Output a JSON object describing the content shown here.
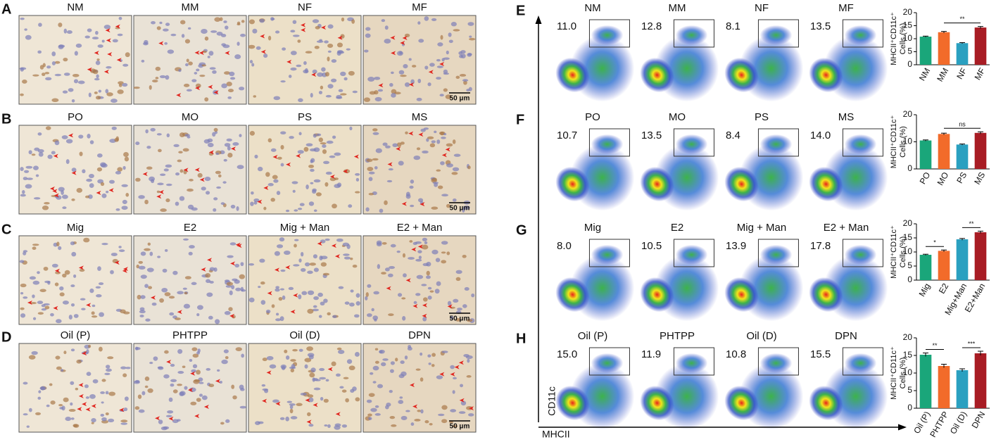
{
  "left_panels": [
    {
      "letter": "A",
      "labels": [
        "NM",
        "MM",
        "NF",
        "MF"
      ],
      "scale": "50 μm"
    },
    {
      "letter": "B",
      "labels": [
        "PO",
        "MO",
        "PS",
        "MS"
      ],
      "scale": "50 μm"
    },
    {
      "letter": "C",
      "labels": [
        "Mig",
        "E2",
        "Mig + Man",
        "E2 + Man"
      ],
      "scale": "50 μm"
    },
    {
      "letter": "D",
      "labels": [
        "Oil (P)",
        "PHTPP",
        "Oil (D)",
        "DPN"
      ],
      "scale": "50 μm"
    }
  ],
  "flow_panels": [
    {
      "letter": "E",
      "labels": [
        "NM",
        "MM",
        "NF",
        "MF"
      ],
      "gates": [
        "11.0",
        "12.8",
        "8.1",
        "13.5"
      ]
    },
    {
      "letter": "F",
      "labels": [
        "PO",
        "MO",
        "PS",
        "MS"
      ],
      "gates": [
        "10.7",
        "13.5",
        "8.4",
        "14.0"
      ]
    },
    {
      "letter": "G",
      "labels": [
        "Mig",
        "E2",
        "Mig + Man",
        "E2 + Man"
      ],
      "gates": [
        "8.0",
        "10.5",
        "13.9",
        "17.8"
      ]
    },
    {
      "letter": "H",
      "labels": [
        "Oil (P)",
        "PHTPP",
        "Oil (D)",
        "DPN"
      ],
      "gates": [
        "15.0",
        "11.9",
        "10.8",
        "15.5"
      ]
    }
  ],
  "flow_axes": {
    "y_label": "CD11c",
    "x_label": "MHCII"
  },
  "chart_data": [
    {
      "type": "bar",
      "y_label": [
        "MHCII⁺CD11c⁺",
        "Cells (%)"
      ],
      "categories": [
        "NM",
        "MM",
        "NF",
        "MF"
      ],
      "values": [
        10.8,
        12.5,
        8.3,
        14.3
      ],
      "errors": [
        0.2,
        0.3,
        0.2,
        0.4
      ],
      "colors": [
        "#1aa67a",
        "#f26b2a",
        "#2aa0c0",
        "#a81c24"
      ],
      "ylim": [
        0,
        20
      ],
      "yticks": [
        0,
        5,
        10,
        15,
        20
      ],
      "significance": [
        {
          "between": [
            "MM",
            "MF"
          ],
          "label": "**"
        }
      ]
    },
    {
      "type": "bar",
      "y_label": [
        "MHCII⁺CD11c⁺",
        "Cells (%)"
      ],
      "categories": [
        "PO",
        "MO",
        "PS",
        "MS"
      ],
      "values": [
        10.5,
        12.9,
        9.0,
        13.3
      ],
      "errors": [
        0.2,
        0.3,
        0.2,
        0.4
      ],
      "colors": [
        "#1aa67a",
        "#f26b2a",
        "#2aa0c0",
        "#a81c24"
      ],
      "ylim": [
        0,
        20
      ],
      "yticks": [
        0,
        10,
        20
      ],
      "significance": [
        {
          "between": [
            "MO",
            "MS"
          ],
          "label": "ns"
        }
      ]
    },
    {
      "type": "bar",
      "y_label": [
        "MHCII⁺CD11c⁺",
        "Cells (%)"
      ],
      "categories": [
        "Mig",
        "E2",
        "Mig+Man",
        "E2+Man"
      ],
      "values": [
        9.0,
        10.4,
        14.5,
        17.0
      ],
      "errors": [
        0.2,
        0.3,
        0.3,
        0.4
      ],
      "colors": [
        "#1aa67a",
        "#f26b2a",
        "#2aa0c0",
        "#a81c24"
      ],
      "ylim": [
        0,
        20
      ],
      "yticks": [
        0,
        5,
        10,
        15,
        20
      ],
      "significance": [
        {
          "between": [
            "Mig",
            "E2"
          ],
          "label": "*"
        },
        {
          "between": [
            "Mig+Man",
            "E2+Man"
          ],
          "label": "**"
        }
      ]
    },
    {
      "type": "bar",
      "y_label": [
        "MHCII⁺CD11c⁺",
        "Cells (%)"
      ],
      "categories": [
        "Oil (P)",
        "PHTPP",
        "Oil (D)",
        "DPN"
      ],
      "values": [
        15.2,
        12.0,
        10.8,
        15.6
      ],
      "errors": [
        0.5,
        0.5,
        0.4,
        0.6
      ],
      "colors": [
        "#1aa67a",
        "#f26b2a",
        "#2aa0c0",
        "#a81c24"
      ],
      "ylim": [
        0,
        20
      ],
      "yticks": [
        0,
        5,
        10,
        15,
        20
      ],
      "significance": [
        {
          "between": [
            "Oil (P)",
            "PHTPP"
          ],
          "label": "**"
        },
        {
          "between": [
            "Oil (D)",
            "DPN"
          ],
          "label": "***"
        }
      ]
    }
  ]
}
